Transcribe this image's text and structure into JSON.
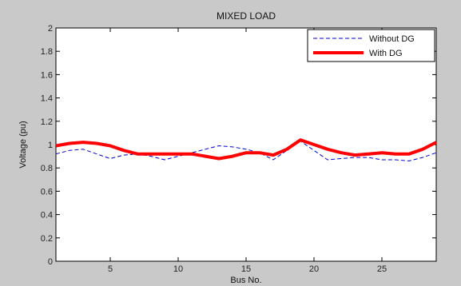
{
  "chart_data": {
    "type": "line",
    "title": "MIXED LOAD",
    "xlabel": "Bus No.",
    "ylabel": "Voltage (pu)",
    "xlim": [
      1,
      29
    ],
    "ylim": [
      0,
      2
    ],
    "xticks": [
      5,
      10,
      15,
      20,
      25
    ],
    "yticks": [
      0,
      0.2,
      0.4,
      0.6,
      0.8,
      1,
      1.2,
      1.4,
      1.6,
      1.8,
      2
    ],
    "ytick_labels": [
      "0",
      "0.2",
      "0.4",
      "0.6",
      "0.8",
      "1",
      "1.2",
      "1.4",
      "1.6",
      "1.8",
      "2"
    ],
    "grid": false,
    "legend_position": "top-right",
    "x": [
      1,
      2,
      3,
      4,
      5,
      6,
      7,
      8,
      9,
      10,
      11,
      12,
      13,
      14,
      15,
      16,
      17,
      18,
      19,
      20,
      21,
      22,
      23,
      24,
      25,
      26,
      27,
      28,
      29
    ],
    "series": [
      {
        "name": "Without DG",
        "color": "#0000cc",
        "style": "dashed",
        "values": [
          0.92,
          0.95,
          0.96,
          0.92,
          0.88,
          0.91,
          0.92,
          0.9,
          0.87,
          0.9,
          0.93,
          0.96,
          0.99,
          0.98,
          0.96,
          0.93,
          0.87,
          0.95,
          1.03,
          0.95,
          0.87,
          0.88,
          0.89,
          0.89,
          0.87,
          0.87,
          0.86,
          0.89,
          0.93
        ]
      },
      {
        "name": "With DG",
        "color": "#ff0000",
        "style": "solid",
        "values": [
          0.99,
          1.01,
          1.02,
          1.01,
          0.99,
          0.95,
          0.92,
          0.92,
          0.92,
          0.92,
          0.92,
          0.9,
          0.88,
          0.9,
          0.93,
          0.93,
          0.91,
          0.96,
          1.04,
          1.0,
          0.96,
          0.93,
          0.91,
          0.92,
          0.93,
          0.92,
          0.92,
          0.96,
          1.02
        ]
      }
    ]
  }
}
